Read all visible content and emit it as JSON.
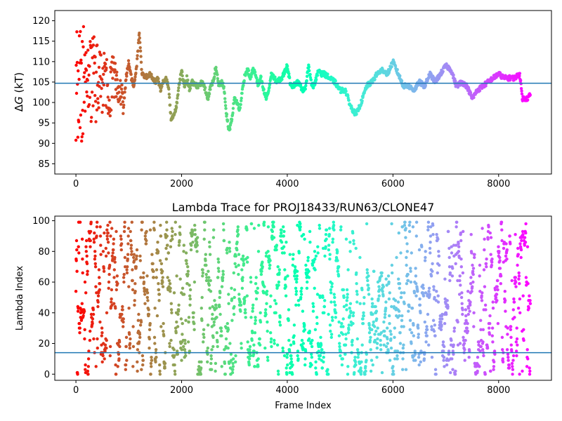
{
  "chart_data": [
    {
      "type": "scatter",
      "title": "",
      "xlabel": "",
      "ylabel_italic": "G",
      "ylabel_prefix": "Δ",
      "ylabel_suffix": " (kT)",
      "xlim": [
        -400,
        9000
      ],
      "ylim": [
        82.5,
        122.5
      ],
      "xticks": [
        0,
        2000,
        4000,
        6000,
        8000
      ],
      "xtick_labels": [
        "0",
        "2000",
        "4000",
        "6000",
        "8000"
      ],
      "yticks": [
        85,
        90,
        95,
        100,
        105,
        110,
        115,
        120
      ],
      "ytick_labels": [
        "85",
        "90",
        "95",
        "100",
        "105",
        "110",
        "115",
        "120"
      ],
      "hline": 104.7,
      "hline_color": "#1f77b4",
      "colormap": "rainbow",
      "x_max_frame": 8600,
      "trace_keypoints": [
        [
          0,
          105
        ],
        [
          30,
          103
        ],
        [
          60,
          106
        ],
        [
          100,
          104
        ],
        [
          150,
          105
        ],
        [
          200,
          106
        ],
        [
          250,
          104
        ],
        [
          300,
          105
        ],
        [
          350,
          107
        ],
        [
          400,
          104
        ],
        [
          450,
          106
        ],
        [
          500,
          105
        ],
        [
          550,
          107
        ],
        [
          600,
          104
        ],
        [
          650,
          103
        ],
        [
          700,
          106
        ],
        [
          750,
          105
        ],
        [
          800,
          104
        ],
        [
          850,
          103
        ],
        [
          900,
          99
        ],
        [
          950,
          106
        ],
        [
          1000,
          110
        ],
        [
          1050,
          106
        ],
        [
          1100,
          104
        ],
        [
          1150,
          109
        ],
        [
          1200,
          117
        ],
        [
          1250,
          107
        ],
        [
          1300,
          106
        ],
        [
          1400,
          107
        ],
        [
          1500,
          105
        ],
        [
          1550,
          106
        ],
        [
          1600,
          103
        ],
        [
          1650,
          105
        ],
        [
          1700,
          106
        ],
        [
          1750,
          104
        ],
        [
          1800,
          96
        ],
        [
          1850,
          97
        ],
        [
          1900,
          99
        ],
        [
          1950,
          104
        ],
        [
          2000,
          108
        ],
        [
          2050,
          104
        ],
        [
          2100,
          106
        ],
        [
          2150,
          103
        ],
        [
          2200,
          105
        ],
        [
          2300,
          104
        ],
        [
          2400,
          105
        ],
        [
          2500,
          101
        ],
        [
          2550,
          104
        ],
        [
          2600,
          105
        ],
        [
          2650,
          109
        ],
        [
          2700,
          104
        ],
        [
          2750,
          105
        ],
        [
          2800,
          104
        ],
        [
          2850,
          97
        ],
        [
          2900,
          93
        ],
        [
          2950,
          96
        ],
        [
          3000,
          101
        ],
        [
          3050,
          100
        ],
        [
          3100,
          98
        ],
        [
          3150,
          103
        ],
        [
          3200,
          107
        ],
        [
          3250,
          108
        ],
        [
          3300,
          106
        ],
        [
          3350,
          108
        ],
        [
          3400,
          107
        ],
        [
          3450,
          104
        ],
        [
          3500,
          106
        ],
        [
          3550,
          103
        ],
        [
          3600,
          101
        ],
        [
          3650,
          103
        ],
        [
          3700,
          107
        ],
        [
          3750,
          106
        ],
        [
          3800,
          105
        ],
        [
          3900,
          106
        ],
        [
          4000,
          109
        ],
        [
          4050,
          105
        ],
        [
          4100,
          104
        ],
        [
          4200,
          105
        ],
        [
          4300,
          103
        ],
        [
          4350,
          104
        ],
        [
          4400,
          109
        ],
        [
          4450,
          105
        ],
        [
          4500,
          104
        ],
        [
          4600,
          108
        ],
        [
          4650,
          107
        ],
        [
          4700,
          107
        ],
        [
          4800,
          106
        ],
        [
          4900,
          105
        ],
        [
          5000,
          103
        ],
        [
          5100,
          103
        ],
        [
          5200,
          99
        ],
        [
          5300,
          97
        ],
        [
          5400,
          100
        ],
        [
          5500,
          104
        ],
        [
          5600,
          105
        ],
        [
          5700,
          107
        ],
        [
          5800,
          108
        ],
        [
          5900,
          107
        ],
        [
          6000,
          110
        ],
        [
          6100,
          107
        ],
        [
          6200,
          104
        ],
        [
          6300,
          104
        ],
        [
          6400,
          103
        ],
        [
          6500,
          105
        ],
        [
          6600,
          104
        ],
        [
          6700,
          107
        ],
        [
          6800,
          105
        ],
        [
          6900,
          107
        ],
        [
          7000,
          109
        ],
        [
          7100,
          108
        ],
        [
          7200,
          104
        ],
        [
          7300,
          105
        ],
        [
          7400,
          104
        ],
        [
          7500,
          101
        ],
        [
          7600,
          103
        ],
        [
          7700,
          104
        ],
        [
          7800,
          105
        ],
        [
          7900,
          106
        ],
        [
          8000,
          107
        ],
        [
          8100,
          106
        ],
        [
          8200,
          106
        ],
        [
          8300,
          106
        ],
        [
          8400,
          107
        ],
        [
          8450,
          101
        ],
        [
          8550,
          101
        ],
        [
          8600,
          102
        ]
      ],
      "early_scatter_range": [
        86,
        122
      ]
    },
    {
      "type": "scatter",
      "title": "Lambda Trace for PROJ18433/RUN63/CLONE47",
      "xlabel": "Frame Index",
      "ylabel": "Lambda Index",
      "xlim": [
        -400,
        9000
      ],
      "ylim": [
        -4,
        103
      ],
      "xticks": [
        0,
        2000,
        4000,
        6000,
        8000
      ],
      "xtick_labels": [
        "0",
        "2000",
        "4000",
        "6000",
        "8000"
      ],
      "yticks": [
        0,
        20,
        40,
        60,
        80,
        100
      ],
      "ytick_labels": [
        "0",
        "20",
        "40",
        "60",
        "80",
        "100"
      ],
      "hline": 14,
      "hline_color": "#1f77b4",
      "colormap": "rainbow",
      "x_max_frame": 8600,
      "lambda_min": 0,
      "lambda_max": 99
    }
  ]
}
